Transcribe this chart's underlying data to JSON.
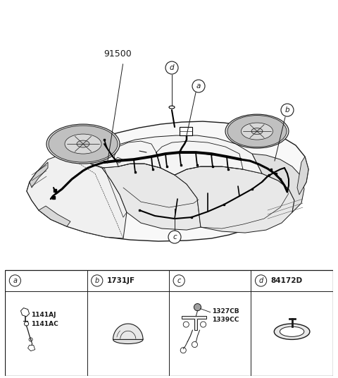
{
  "bg_color": "#ffffff",
  "line_color": "#1a1a1a",
  "fig_width": 4.8,
  "fig_height": 5.36,
  "dpi": 100,
  "part_number": "91500",
  "cells": [
    {
      "label": "a",
      "code": "",
      "parts": [
        "1141AJ",
        "1141AC"
      ]
    },
    {
      "label": "b",
      "code": "1731JF",
      "parts": []
    },
    {
      "label": "c",
      "code": "",
      "parts": [
        "1327CB",
        "1339CC"
      ]
    },
    {
      "label": "d",
      "code": "84172D",
      "parts": []
    }
  ]
}
